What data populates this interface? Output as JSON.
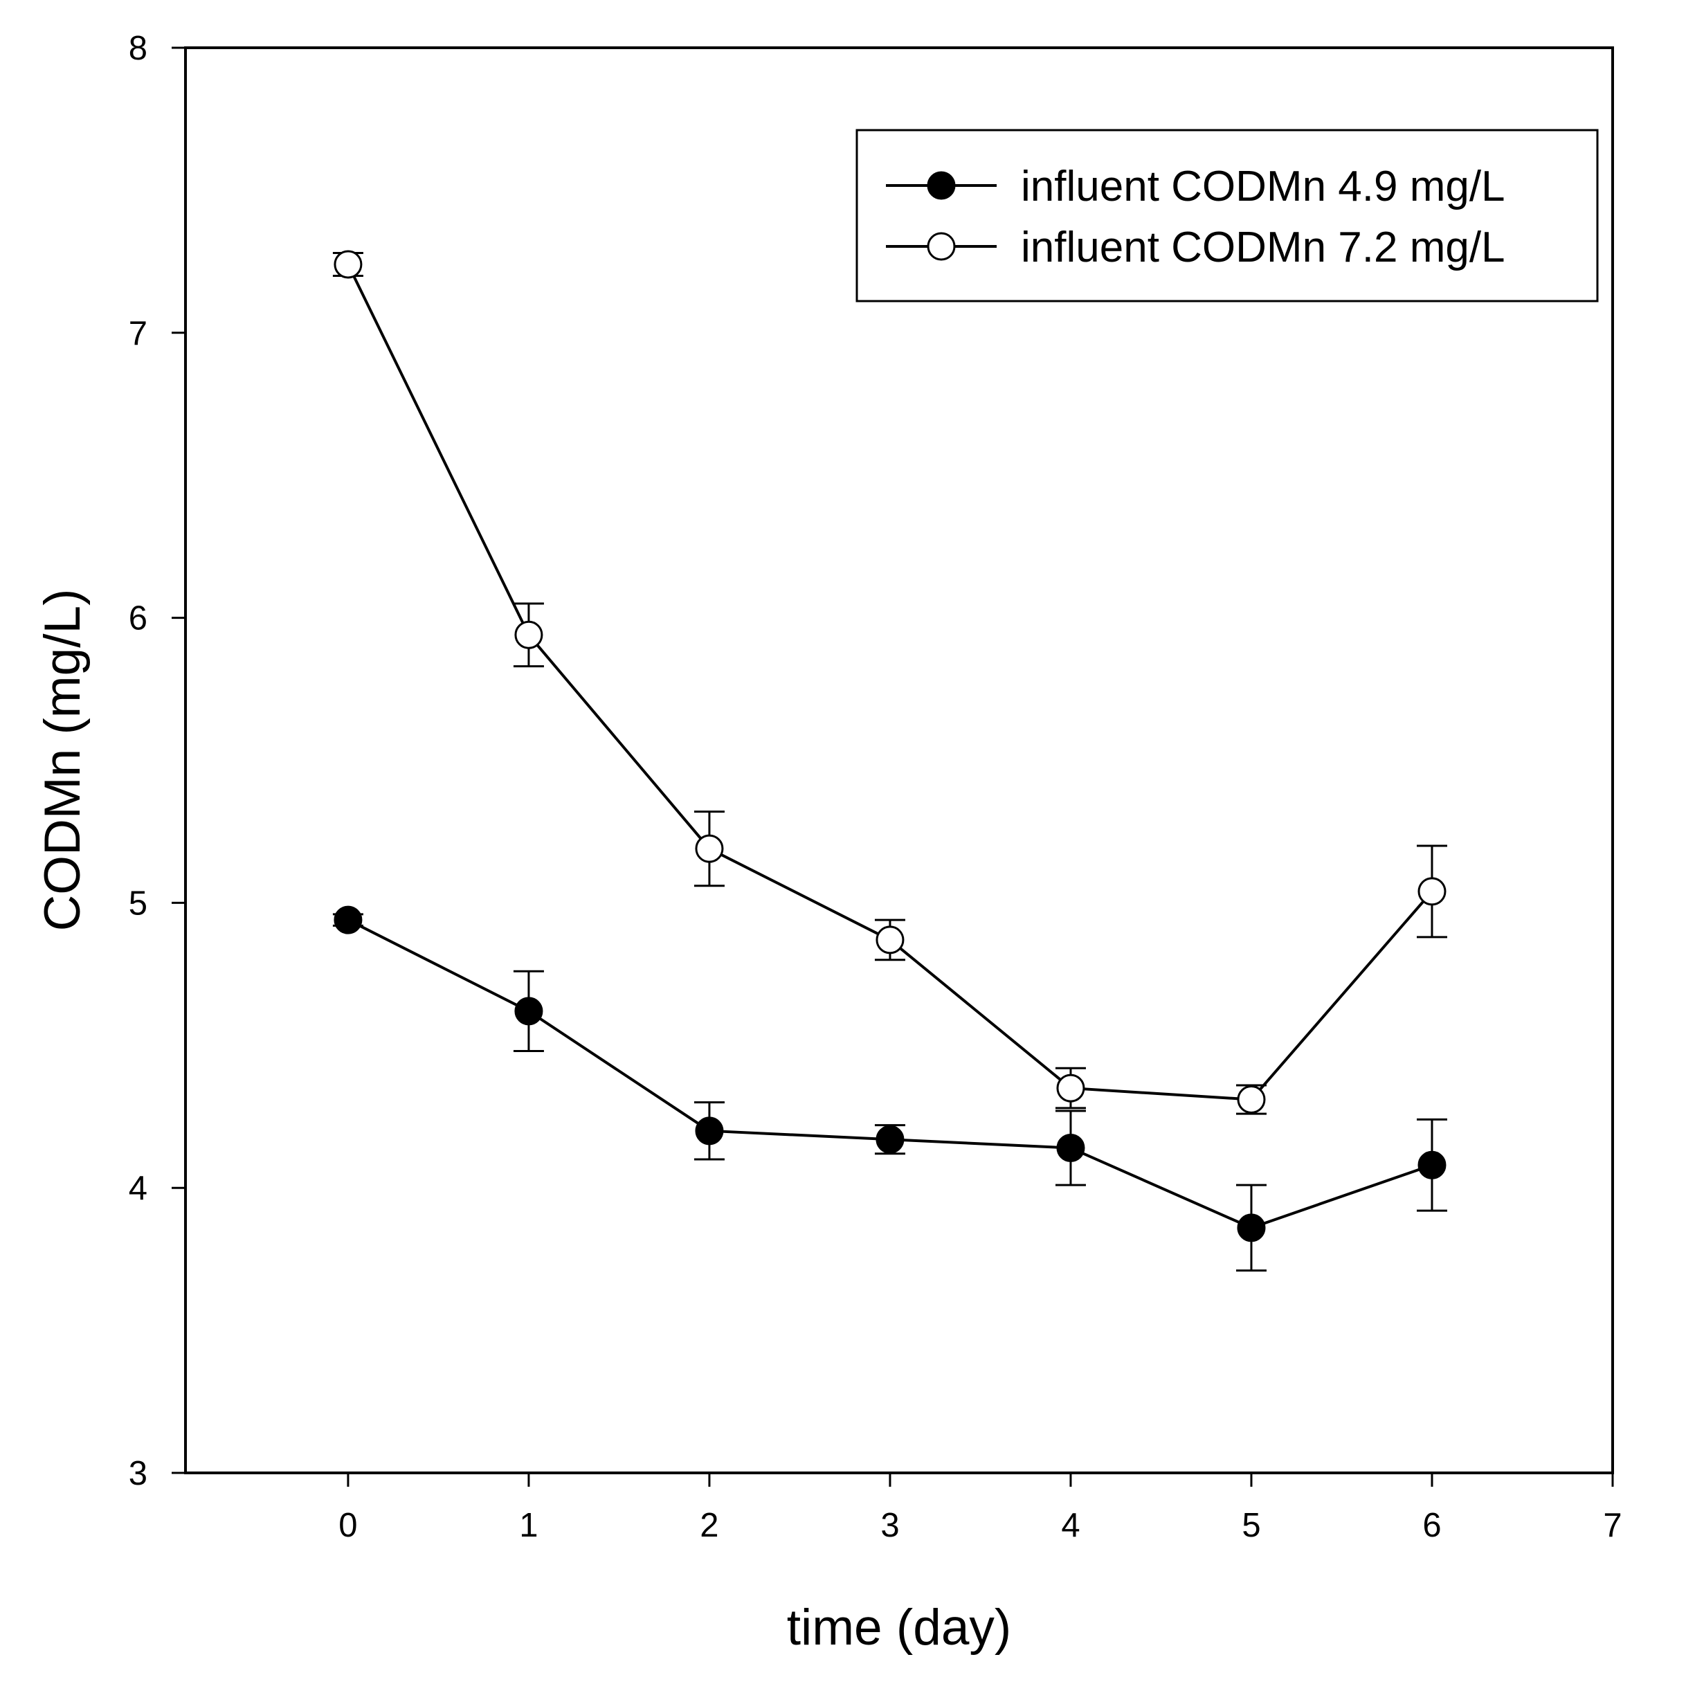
{
  "chart_data": {
    "type": "line",
    "title": "",
    "xlabel": "time (day)",
    "ylabel": "CODMn (mg/L)",
    "xlim": [
      -0.9,
      7
    ],
    "ylim": [
      3,
      8
    ],
    "xticks": [
      0,
      1,
      2,
      3,
      4,
      5,
      6,
      7
    ],
    "yticks": [
      3,
      4,
      5,
      6,
      7,
      8
    ],
    "grid": false,
    "legend_position": "top-right",
    "series": [
      {
        "name": "influent CODMn 4.9 mg/L",
        "marker": "filled-circle",
        "x": [
          0,
          1,
          2,
          3,
          4,
          5,
          6
        ],
        "y": [
          4.94,
          4.62,
          4.2,
          4.17,
          4.14,
          3.86,
          4.08
        ],
        "err": [
          0.02,
          0.14,
          0.1,
          0.05,
          0.13,
          0.15,
          0.16
        ]
      },
      {
        "name": "influent CODMn 7.2 mg/L",
        "marker": "open-circle",
        "x": [
          0,
          1,
          2,
          3,
          4,
          5,
          6
        ],
        "y": [
          7.24,
          5.94,
          5.19,
          4.87,
          4.35,
          4.31,
          5.04
        ],
        "err": [
          0.04,
          0.11,
          0.13,
          0.07,
          0.07,
          0.05,
          0.16
        ]
      }
    ]
  }
}
